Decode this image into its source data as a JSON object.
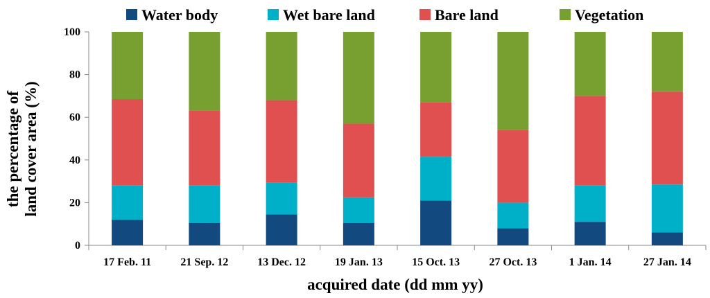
{
  "chart_data": {
    "type": "bar",
    "stacked": true,
    "categories": [
      "17 Feb. 11",
      "21 Sep. 12",
      "13 Dec. 12",
      "19 Jan. 13",
      "15 Oct. 13",
      "27 Oct. 13",
      "1 Jan. 14",
      "27 Jan. 14"
    ],
    "series": [
      {
        "name": "Water body",
        "color": "#124a80",
        "values": [
          12,
          10.5,
          14.5,
          10.5,
          21,
          8,
          11,
          6
        ]
      },
      {
        "name": "Wet bare land",
        "color": "#00b0c8",
        "values": [
          16,
          17.5,
          15,
          12,
          20.5,
          12,
          17,
          22.5
        ]
      },
      {
        "name": "Bare land",
        "color": "#e05050",
        "values": [
          40.5,
          35,
          38.5,
          34.5,
          25.5,
          34,
          42,
          43.5
        ]
      },
      {
        "name": "Vegetation",
        "color": "#77a030",
        "values": [
          31.5,
          37,
          32,
          43,
          33,
          46,
          30,
          28
        ]
      }
    ],
    "xlabel": "acquired date (dd mm yy)",
    "ylabel_line1": "the percentage of",
    "ylabel_line2": "land cover area (%)",
    "ylim": [
      0,
      100
    ],
    "yticks": [
      0,
      20,
      40,
      60,
      80,
      100
    ],
    "grid": false,
    "legend_position": "top"
  }
}
